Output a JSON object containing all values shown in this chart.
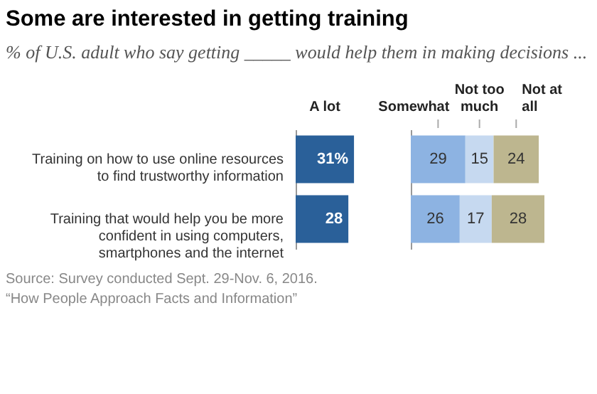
{
  "chart_data": [
    {
      "type": "bar",
      "orientation": "horizontal",
      "title": "Some are interested in getting training",
      "subtitle": "% of U.S. adult who say getting _____ would help them in making decisions ...",
      "categories": [
        "Training on how to use online resources to find trustworthy information",
        "Training that would help you be more confident in using computers, smartphones and the internet"
      ],
      "series": [
        {
          "name": "A lot",
          "color": "#2a6099",
          "values": [
            31,
            28
          ],
          "value_labels": [
            "31%",
            "28"
          ]
        }
      ],
      "annotations": [
        "Source: Survey conducted Sept. 29-Nov. 6, 2016.",
        "“How People Approach Facts and Information”"
      ]
    },
    {
      "type": "bar",
      "orientation": "horizontal",
      "stacked": true,
      "data_labels": true,
      "categories": [
        null,
        null
      ],
      "series": [
        {
          "name": "Somewhat",
          "color": "#8db3e2",
          "values": [
            29,
            26
          ]
        },
        {
          "name": "Not too much",
          "color": "#c6d9f0",
          "values": [
            15,
            17
          ]
        },
        {
          "name": "Not at all",
          "color": "#bdb68f",
          "values": [
            24,
            28
          ]
        }
      ]
    }
  ]
}
